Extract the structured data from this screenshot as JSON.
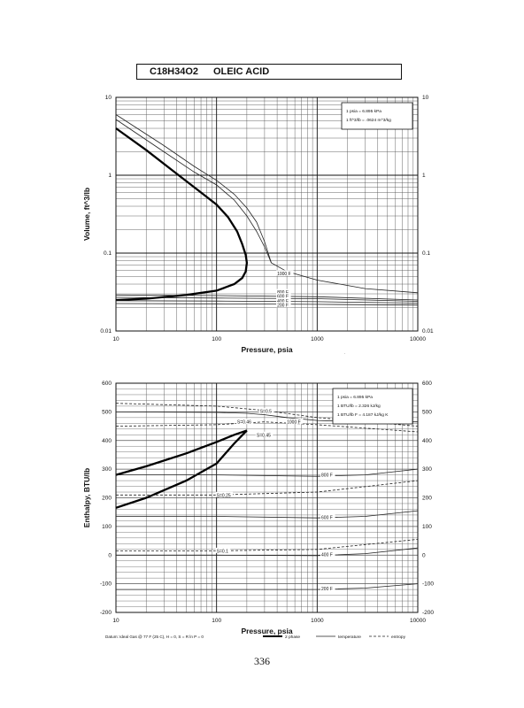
{
  "header": {
    "formula": "C18H34O2",
    "name": "OLEIC ACID"
  },
  "page_number": "336",
  "chart_data": [
    {
      "type": "line",
      "xlabel": "Pressure,  psia",
      "ylabel": "Volume, ft^3/lb",
      "xscale": "log",
      "yscale": "log",
      "xlim": [
        10,
        10000
      ],
      "ylim": [
        0.01,
        10
      ],
      "xticks": [
        10,
        100,
        1000,
        10000
      ],
      "xtick_labels": [
        "10",
        "100",
        "1000",
        "10000"
      ],
      "yticks": [
        0.01,
        0.1,
        1,
        10
      ],
      "ytick_labels": [
        "0.01",
        "0.1",
        "1",
        "10"
      ],
      "grid": true,
      "info_box": [
        "1 psia  =  6.895 kPa",
        "1 ft^3/lb  =  .0624 m^3/kg"
      ],
      "legend": {
        "placement": "bottom-right",
        "entries": [
          {
            "label": "2 phase",
            "style": "heavy"
          },
          {
            "label": "temperature",
            "style": "thin"
          }
        ]
      },
      "series": [
        {
          "kind": "2phase",
          "x": [
            10,
            20,
            40,
            70,
            100,
            130,
            160,
            180,
            195,
            200,
            195,
            180,
            150,
            100,
            50,
            20,
            10
          ],
          "y": [
            4,
            2.1,
            1.05,
            0.6,
            0.42,
            0.29,
            0.19,
            0.13,
            0.095,
            0.075,
            0.058,
            0.048,
            0.04,
            0.033,
            0.029,
            0.026,
            0.025
          ]
        },
        {
          "kind": "temperature",
          "x": [
            10,
            30,
            60,
            100,
            150,
            200,
            250,
            300,
            350
          ],
          "y": [
            5.2,
            2.0,
            1.1,
            0.75,
            0.48,
            0.3,
            0.19,
            0.12,
            0.075
          ]
        },
        {
          "kind": "temperature",
          "x": [
            10,
            30,
            60,
            100,
            150,
            200,
            250,
            300,
            350,
            500,
            1000,
            3000,
            10000
          ],
          "y": [
            6.0,
            2.4,
            1.3,
            0.86,
            0.57,
            0.38,
            0.25,
            0.14,
            0.075,
            0.058,
            0.045,
            0.035,
            0.031
          ]
        },
        {
          "kind": "temperature",
          "x": [
            10,
            100,
            1000,
            10000
          ],
          "y": [
            0.029,
            0.0285,
            0.0275,
            0.025
          ]
        },
        {
          "kind": "temperature",
          "x": [
            10,
            100,
            1000,
            10000
          ],
          "y": [
            0.027,
            0.0265,
            0.026,
            0.024
          ]
        },
        {
          "kind": "temperature",
          "x": [
            10,
            100,
            1000,
            10000
          ],
          "y": [
            0.0245,
            0.0242,
            0.0238,
            0.0228
          ]
        },
        {
          "kind": "temperature",
          "x": [
            10,
            100,
            1000,
            10000
          ],
          "y": [
            0.0225,
            0.0223,
            0.022,
            0.0215
          ]
        }
      ],
      "annotations": [
        {
          "text": "1000 F",
          "x": 400,
          "y": 0.055
        },
        {
          "text": "800 F",
          "x": 400,
          "y": 0.0315
        },
        {
          "text": "600 F",
          "x": 400,
          "y": 0.028
        },
        {
          "text": "400 F",
          "x": 400,
          "y": 0.0245
        },
        {
          "text": "200 F",
          "x": 400,
          "y": 0.0215
        }
      ]
    },
    {
      "type": "line",
      "xlabel": "Pressure,  psia",
      "ylabel": "Enthalpy, BTU/lb",
      "xscale": "log",
      "yscale": "linear",
      "xlim": [
        10,
        10000
      ],
      "ylim": [
        -200,
        600
      ],
      "xticks": [
        10,
        100,
        1000,
        10000
      ],
      "xtick_labels": [
        "10",
        "100",
        "1000",
        "10000"
      ],
      "yticks": [
        -200,
        -100,
        0,
        100,
        200,
        300,
        400,
        500,
        600
      ],
      "ytick_labels": [
        "-200",
        "-100",
        "0",
        "100",
        "200",
        "300",
        "400",
        "500",
        "600"
      ],
      "grid": true,
      "info_box": [
        "1 psia  =  6.895 kPa",
        "1 BTU/lb  =  2.326 kJ/kg",
        "1 BTU/lb F  =  4.187 kJ/kg K"
      ],
      "footnote": "Datum: Ideal Gas @ 77 F (25 C),  H = 0,  S = R ln P = 0",
      "legend": {
        "placement": "bottom",
        "entries": [
          {
            "label": "2 phase",
            "style": "heavy"
          },
          {
            "label": "temperature",
            "style": "thin"
          },
          {
            "label": "entropy",
            "style": "dashed"
          }
        ]
      },
      "series": [
        {
          "kind": "2phase",
          "x": [
            10,
            20,
            50,
            100,
            150,
            200
          ],
          "y": [
            280,
            310,
            355,
            395,
            420,
            435
          ]
        },
        {
          "kind": "2phase",
          "x": [
            10,
            20,
            50,
            100,
            150,
            200
          ],
          "y": [
            165,
            200,
            260,
            320,
            390,
            435
          ]
        },
        {
          "kind": "temperature",
          "x": [
            10,
            100,
            200,
            300,
            500,
            1000,
            3000,
            10000
          ],
          "y": [
            500,
            498,
            495,
            490,
            480,
            470,
            465,
            465
          ]
        },
        {
          "kind": "temperature",
          "x": [
            10,
            100,
            1000,
            3000,
            10000
          ],
          "y": [
            280,
            280,
            275,
            280,
            300
          ]
        },
        {
          "kind": "temperature",
          "x": [
            10,
            100,
            1000,
            3000,
            10000
          ],
          "y": [
            135,
            135,
            130,
            135,
            155
          ]
        },
        {
          "kind": "temperature",
          "x": [
            10,
            100,
            1000,
            3000,
            10000
          ],
          "y": [
            0,
            0,
            -2,
            5,
            25
          ]
        },
        {
          "kind": "temperature",
          "x": [
            10,
            100,
            1000,
            3000,
            10000
          ],
          "y": [
            -120,
            -120,
            -120,
            -115,
            -100
          ]
        },
        {
          "kind": "entropy",
          "x": [
            10,
            100,
            300,
            1000,
            10000
          ],
          "y": [
            530,
            520,
            505,
            480,
            450
          ]
        },
        {
          "kind": "entropy",
          "x": [
            10,
            100,
            300,
            1000,
            10000
          ],
          "y": [
            450,
            455,
            465,
            455,
            430
          ]
        },
        {
          "kind": "entropy",
          "x": [
            10,
            100,
            1000,
            10000
          ],
          "y": [
            210,
            210,
            220,
            260
          ]
        },
        {
          "kind": "entropy",
          "x": [
            10,
            100,
            1000,
            10000
          ],
          "y": [
            15,
            15,
            20,
            55
          ]
        }
      ],
      "annotations": [
        {
          "text": "S=0.5",
          "x": 270,
          "y": 502
        },
        {
          "text": "S=0.46",
          "x": 160,
          "y": 465
        },
        {
          "text": "1000 F",
          "x": 500,
          "y": 466
        },
        {
          "text": "S=0.45",
          "x": 250,
          "y": 420
        },
        {
          "text": "800 F",
          "x": 1100,
          "y": 280
        },
        {
          "text": "S=0.25",
          "x": 100,
          "y": 210
        },
        {
          "text": "600 F",
          "x": 1100,
          "y": 132
        },
        {
          "text": "S=0.1",
          "x": 100,
          "y": 15
        },
        {
          "text": "400 F",
          "x": 1100,
          "y": 2
        },
        {
          "text": "200 F",
          "x": 1100,
          "y": -117
        }
      ]
    }
  ]
}
